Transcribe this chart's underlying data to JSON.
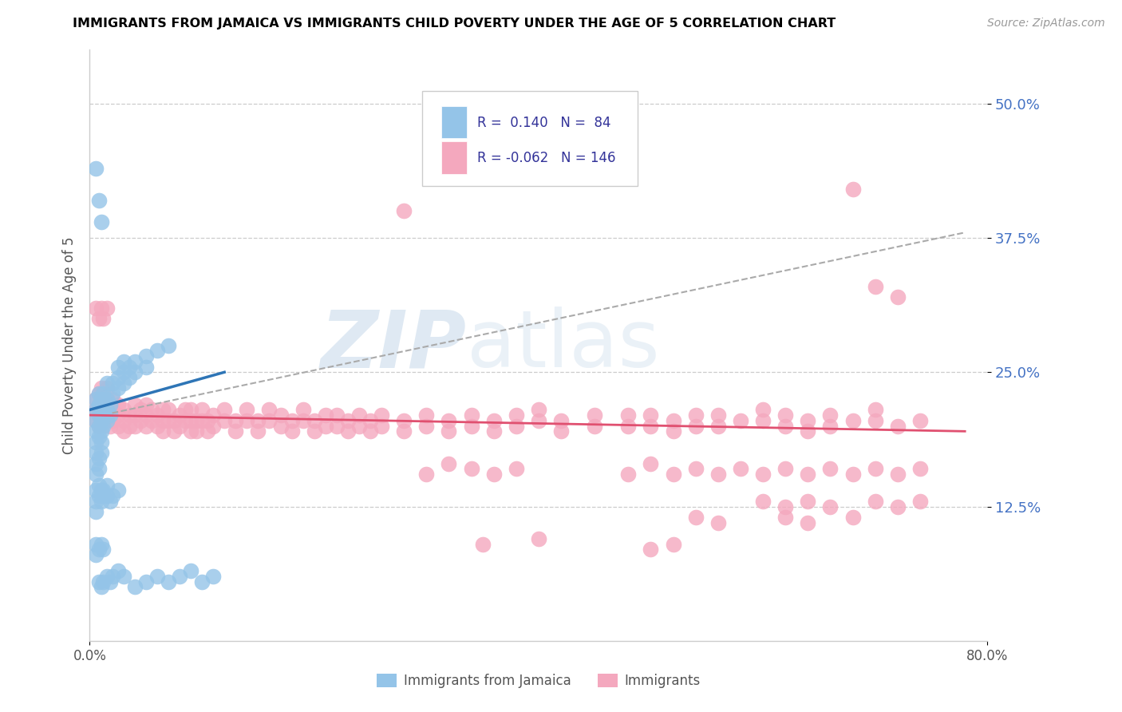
{
  "title": "IMMIGRANTS FROM JAMAICA VS IMMIGRANTS CHILD POVERTY UNDER THE AGE OF 5 CORRELATION CHART",
  "source": "Source: ZipAtlas.com",
  "ylabel": "Child Poverty Under the Age of 5",
  "ytick_labels": [
    "12.5%",
    "25.0%",
    "37.5%",
    "50.0%"
  ],
  "ytick_values": [
    0.125,
    0.25,
    0.375,
    0.5
  ],
  "xlim": [
    0.0,
    0.8
  ],
  "ylim": [
    0.0,
    0.55
  ],
  "blue_color": "#94C4E8",
  "pink_color": "#F4A8BE",
  "blue_line_color": "#2E75B6",
  "pink_line_color": "#E05070",
  "r_blue": 0.14,
  "n_blue": 84,
  "r_pink": -0.062,
  "n_pink": 146,
  "watermark": "ZIPAtlas",
  "blue_scatter": [
    [
      0.005,
      0.215
    ],
    [
      0.005,
      0.225
    ],
    [
      0.005,
      0.205
    ],
    [
      0.005,
      0.195
    ],
    [
      0.005,
      0.185
    ],
    [
      0.005,
      0.175
    ],
    [
      0.005,
      0.165
    ],
    [
      0.005,
      0.155
    ],
    [
      0.008,
      0.21
    ],
    [
      0.008,
      0.2
    ],
    [
      0.008,
      0.19
    ],
    [
      0.008,
      0.22
    ],
    [
      0.008,
      0.23
    ],
    [
      0.008,
      0.17
    ],
    [
      0.008,
      0.16
    ],
    [
      0.01,
      0.225
    ],
    [
      0.01,
      0.215
    ],
    [
      0.01,
      0.205
    ],
    [
      0.01,
      0.195
    ],
    [
      0.01,
      0.185
    ],
    [
      0.01,
      0.175
    ],
    [
      0.012,
      0.22
    ],
    [
      0.012,
      0.21
    ],
    [
      0.012,
      0.2
    ],
    [
      0.012,
      0.23
    ],
    [
      0.015,
      0.225
    ],
    [
      0.015,
      0.215
    ],
    [
      0.015,
      0.205
    ],
    [
      0.015,
      0.24
    ],
    [
      0.018,
      0.22
    ],
    [
      0.018,
      0.21
    ],
    [
      0.02,
      0.24
    ],
    [
      0.02,
      0.23
    ],
    [
      0.025,
      0.245
    ],
    [
      0.025,
      0.235
    ],
    [
      0.025,
      0.255
    ],
    [
      0.005,
      0.44
    ],
    [
      0.008,
      0.41
    ],
    [
      0.01,
      0.39
    ],
    [
      0.005,
      0.14
    ],
    [
      0.005,
      0.13
    ],
    [
      0.005,
      0.12
    ],
    [
      0.008,
      0.145
    ],
    [
      0.008,
      0.135
    ],
    [
      0.01,
      0.14
    ],
    [
      0.01,
      0.13
    ],
    [
      0.012,
      0.14
    ],
    [
      0.012,
      0.135
    ],
    [
      0.015,
      0.135
    ],
    [
      0.015,
      0.145
    ],
    [
      0.018,
      0.13
    ],
    [
      0.02,
      0.135
    ],
    [
      0.025,
      0.14
    ],
    [
      0.005,
      0.09
    ],
    [
      0.005,
      0.08
    ],
    [
      0.008,
      0.085
    ],
    [
      0.01,
      0.09
    ],
    [
      0.012,
      0.085
    ],
    [
      0.03,
      0.25
    ],
    [
      0.03,
      0.24
    ],
    [
      0.03,
      0.26
    ],
    [
      0.035,
      0.255
    ],
    [
      0.035,
      0.245
    ],
    [
      0.04,
      0.26
    ],
    [
      0.04,
      0.25
    ],
    [
      0.05,
      0.265
    ],
    [
      0.05,
      0.255
    ],
    [
      0.06,
      0.27
    ],
    [
      0.07,
      0.275
    ],
    [
      0.008,
      0.055
    ],
    [
      0.01,
      0.05
    ],
    [
      0.012,
      0.055
    ],
    [
      0.015,
      0.06
    ],
    [
      0.018,
      0.055
    ],
    [
      0.02,
      0.06
    ],
    [
      0.025,
      0.065
    ],
    [
      0.03,
      0.06
    ],
    [
      0.04,
      0.05
    ],
    [
      0.05,
      0.055
    ],
    [
      0.06,
      0.06
    ],
    [
      0.07,
      0.055
    ],
    [
      0.08,
      0.06
    ],
    [
      0.09,
      0.065
    ],
    [
      0.1,
      0.055
    ],
    [
      0.11,
      0.06
    ]
  ],
  "pink_scatter": [
    [
      0.005,
      0.215
    ],
    [
      0.005,
      0.205
    ],
    [
      0.005,
      0.225
    ],
    [
      0.008,
      0.22
    ],
    [
      0.008,
      0.21
    ],
    [
      0.008,
      0.2
    ],
    [
      0.008,
      0.23
    ],
    [
      0.01,
      0.225
    ],
    [
      0.01,
      0.215
    ],
    [
      0.01,
      0.205
    ],
    [
      0.01,
      0.235
    ],
    [
      0.012,
      0.22
    ],
    [
      0.012,
      0.21
    ],
    [
      0.012,
      0.23
    ],
    [
      0.015,
      0.225
    ],
    [
      0.015,
      0.215
    ],
    [
      0.015,
      0.205
    ],
    [
      0.015,
      0.235
    ],
    [
      0.018,
      0.22
    ],
    [
      0.018,
      0.21
    ],
    [
      0.018,
      0.2
    ],
    [
      0.02,
      0.215
    ],
    [
      0.02,
      0.205
    ],
    [
      0.02,
      0.225
    ],
    [
      0.025,
      0.21
    ],
    [
      0.025,
      0.2
    ],
    [
      0.025,
      0.22
    ],
    [
      0.005,
      0.31
    ],
    [
      0.008,
      0.3
    ],
    [
      0.01,
      0.31
    ],
    [
      0.012,
      0.3
    ],
    [
      0.015,
      0.31
    ],
    [
      0.03,
      0.215
    ],
    [
      0.03,
      0.205
    ],
    [
      0.03,
      0.195
    ],
    [
      0.035,
      0.21
    ],
    [
      0.035,
      0.2
    ],
    [
      0.04,
      0.21
    ],
    [
      0.04,
      0.2
    ],
    [
      0.04,
      0.22
    ],
    [
      0.045,
      0.205
    ],
    [
      0.045,
      0.215
    ],
    [
      0.05,
      0.21
    ],
    [
      0.05,
      0.2
    ],
    [
      0.05,
      0.22
    ],
    [
      0.055,
      0.205
    ],
    [
      0.055,
      0.215
    ],
    [
      0.06,
      0.21
    ],
    [
      0.06,
      0.2
    ],
    [
      0.065,
      0.205
    ],
    [
      0.065,
      0.215
    ],
    [
      0.065,
      0.195
    ],
    [
      0.07,
      0.205
    ],
    [
      0.07,
      0.215
    ],
    [
      0.075,
      0.205
    ],
    [
      0.075,
      0.195
    ],
    [
      0.08,
      0.21
    ],
    [
      0.08,
      0.2
    ],
    [
      0.085,
      0.205
    ],
    [
      0.085,
      0.215
    ],
    [
      0.09,
      0.205
    ],
    [
      0.09,
      0.215
    ],
    [
      0.09,
      0.195
    ],
    [
      0.095,
      0.205
    ],
    [
      0.095,
      0.195
    ],
    [
      0.1,
      0.205
    ],
    [
      0.1,
      0.215
    ],
    [
      0.105,
      0.205
    ],
    [
      0.105,
      0.195
    ],
    [
      0.11,
      0.21
    ],
    [
      0.11,
      0.2
    ],
    [
      0.12,
      0.205
    ],
    [
      0.12,
      0.215
    ],
    [
      0.13,
      0.205
    ],
    [
      0.13,
      0.195
    ],
    [
      0.14,
      0.205
    ],
    [
      0.14,
      0.215
    ],
    [
      0.15,
      0.205
    ],
    [
      0.15,
      0.195
    ],
    [
      0.16,
      0.205
    ],
    [
      0.16,
      0.215
    ],
    [
      0.17,
      0.2
    ],
    [
      0.17,
      0.21
    ],
    [
      0.18,
      0.205
    ],
    [
      0.18,
      0.195
    ],
    [
      0.19,
      0.205
    ],
    [
      0.19,
      0.215
    ],
    [
      0.2,
      0.205
    ],
    [
      0.2,
      0.195
    ],
    [
      0.21,
      0.2
    ],
    [
      0.21,
      0.21
    ],
    [
      0.22,
      0.2
    ],
    [
      0.22,
      0.21
    ],
    [
      0.23,
      0.205
    ],
    [
      0.23,
      0.195
    ],
    [
      0.24,
      0.2
    ],
    [
      0.24,
      0.21
    ],
    [
      0.25,
      0.205
    ],
    [
      0.25,
      0.195
    ],
    [
      0.26,
      0.2
    ],
    [
      0.26,
      0.21
    ],
    [
      0.28,
      0.205
    ],
    [
      0.28,
      0.195
    ],
    [
      0.3,
      0.2
    ],
    [
      0.3,
      0.21
    ],
    [
      0.32,
      0.205
    ],
    [
      0.32,
      0.195
    ],
    [
      0.34,
      0.2
    ],
    [
      0.34,
      0.21
    ],
    [
      0.36,
      0.205
    ],
    [
      0.36,
      0.195
    ],
    [
      0.38,
      0.2
    ],
    [
      0.38,
      0.21
    ],
    [
      0.4,
      0.205
    ],
    [
      0.4,
      0.215
    ],
    [
      0.42,
      0.205
    ],
    [
      0.42,
      0.195
    ],
    [
      0.45,
      0.2
    ],
    [
      0.45,
      0.21
    ],
    [
      0.48,
      0.2
    ],
    [
      0.48,
      0.21
    ],
    [
      0.5,
      0.2
    ],
    [
      0.5,
      0.21
    ],
    [
      0.52,
      0.205
    ],
    [
      0.52,
      0.195
    ],
    [
      0.54,
      0.2
    ],
    [
      0.54,
      0.21
    ],
    [
      0.56,
      0.2
    ],
    [
      0.56,
      0.21
    ],
    [
      0.58,
      0.205
    ],
    [
      0.6,
      0.205
    ],
    [
      0.6,
      0.215
    ],
    [
      0.62,
      0.2
    ],
    [
      0.62,
      0.21
    ],
    [
      0.64,
      0.205
    ],
    [
      0.64,
      0.195
    ],
    [
      0.66,
      0.2
    ],
    [
      0.66,
      0.21
    ],
    [
      0.68,
      0.205
    ],
    [
      0.7,
      0.205
    ],
    [
      0.7,
      0.215
    ],
    [
      0.72,
      0.2
    ],
    [
      0.74,
      0.205
    ],
    [
      0.3,
      0.155
    ],
    [
      0.32,
      0.165
    ],
    [
      0.34,
      0.16
    ],
    [
      0.36,
      0.155
    ],
    [
      0.38,
      0.16
    ],
    [
      0.48,
      0.155
    ],
    [
      0.5,
      0.165
    ],
    [
      0.52,
      0.155
    ],
    [
      0.54,
      0.16
    ],
    [
      0.56,
      0.155
    ],
    [
      0.58,
      0.16
    ],
    [
      0.6,
      0.155
    ],
    [
      0.62,
      0.16
    ],
    [
      0.64,
      0.155
    ],
    [
      0.66,
      0.16
    ],
    [
      0.68,
      0.155
    ],
    [
      0.7,
      0.16
    ],
    [
      0.72,
      0.155
    ],
    [
      0.74,
      0.16
    ],
    [
      0.6,
      0.13
    ],
    [
      0.62,
      0.125
    ],
    [
      0.64,
      0.13
    ],
    [
      0.66,
      0.125
    ],
    [
      0.7,
      0.13
    ],
    [
      0.72,
      0.125
    ],
    [
      0.74,
      0.13
    ],
    [
      0.35,
      0.09
    ],
    [
      0.4,
      0.095
    ],
    [
      0.5,
      0.085
    ],
    [
      0.52,
      0.09
    ],
    [
      0.54,
      0.115
    ],
    [
      0.56,
      0.11
    ],
    [
      0.62,
      0.115
    ],
    [
      0.64,
      0.11
    ],
    [
      0.68,
      0.115
    ],
    [
      0.28,
      0.4
    ],
    [
      0.68,
      0.42
    ],
    [
      0.7,
      0.33
    ],
    [
      0.72,
      0.32
    ]
  ]
}
